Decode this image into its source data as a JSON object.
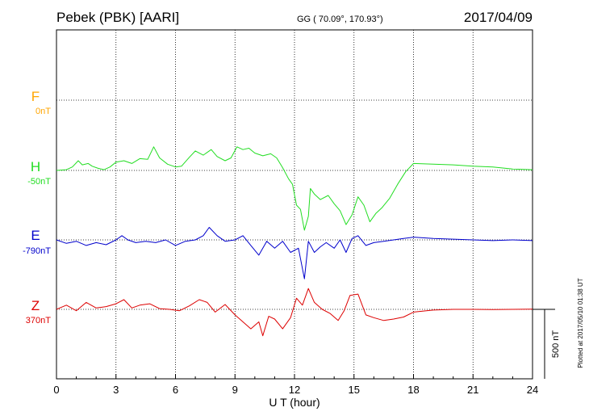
{
  "header": {
    "station": "Pebek (PBK)  [AARI]",
    "coords": "GG ( 70.09°, 170.93°)",
    "date": "2017/04/09"
  },
  "side_note": "Plotted at 2017/05/10 01:38 UT",
  "scale_label": "500 nT",
  "colors": {
    "F": "#ffa500",
    "H": "#22dd22",
    "E": "#0000cc",
    "Z": "#dd0000"
  },
  "chart_data": {
    "type": "line",
    "xlabel": "U T (hour)",
    "xlim": [
      0,
      24
    ],
    "xticks": [
      0,
      3,
      6,
      9,
      12,
      15,
      18,
      21,
      24
    ],
    "grid": true,
    "scale_bar_nT": 500,
    "series": [
      {
        "name": "F",
        "offset_label": "0nT",
        "baseline_nT": 0,
        "points": []
      },
      {
        "name": "H",
        "offset_label": "-50nT",
        "baseline_nT": -50,
        "points": [
          [
            0,
            -50
          ],
          [
            0.5,
            -45
          ],
          [
            0.8,
            -25
          ],
          [
            1.1,
            20
          ],
          [
            1.3,
            -10
          ],
          [
            1.6,
            0
          ],
          [
            1.8,
            -20
          ],
          [
            2.1,
            -35
          ],
          [
            2.4,
            -45
          ],
          [
            2.7,
            -25
          ],
          [
            3.0,
            10
          ],
          [
            3.4,
            20
          ],
          [
            3.8,
            0
          ],
          [
            4.2,
            35
          ],
          [
            4.6,
            30
          ],
          [
            4.9,
            120
          ],
          [
            5.2,
            40
          ],
          [
            5.6,
            -5
          ],
          [
            6.0,
            -25
          ],
          [
            6.3,
            -20
          ],
          [
            6.7,
            45
          ],
          [
            7.0,
            90
          ],
          [
            7.4,
            60
          ],
          [
            7.8,
            100
          ],
          [
            8.1,
            50
          ],
          [
            8.5,
            20
          ],
          [
            8.8,
            40
          ],
          [
            9.1,
            120
          ],
          [
            9.4,
            100
          ],
          [
            9.7,
            110
          ],
          [
            10.0,
            75
          ],
          [
            10.4,
            55
          ],
          [
            10.8,
            70
          ],
          [
            11.1,
            40
          ],
          [
            11.4,
            -30
          ],
          [
            11.7,
            -110
          ],
          [
            11.9,
            -150
          ],
          [
            12.1,
            -300
          ],
          [
            12.3,
            -330
          ],
          [
            12.5,
            -480
          ],
          [
            12.7,
            -380
          ],
          [
            12.8,
            -180
          ],
          [
            13.0,
            -220
          ],
          [
            13.3,
            -260
          ],
          [
            13.7,
            -230
          ],
          [
            14.0,
            -290
          ],
          [
            14.3,
            -340
          ],
          [
            14.6,
            -440
          ],
          [
            14.9,
            -370
          ],
          [
            15.2,
            -240
          ],
          [
            15.5,
            -300
          ],
          [
            15.8,
            -420
          ],
          [
            16.1,
            -360
          ],
          [
            16.4,
            -320
          ],
          [
            16.8,
            -250
          ],
          [
            17.2,
            -150
          ],
          [
            17.6,
            -60
          ],
          [
            18.0,
            0
          ],
          [
            19.0,
            -5
          ],
          [
            20.0,
            -10
          ],
          [
            21.0,
            -20
          ],
          [
            22.0,
            -25
          ],
          [
            23.0,
            -40
          ],
          [
            24.0,
            -45
          ]
        ]
      },
      {
        "name": "E",
        "offset_label": "-790nT",
        "baseline_nT": -790,
        "points": [
          [
            0,
            -790
          ],
          [
            0.5,
            -815
          ],
          [
            1.0,
            -800
          ],
          [
            1.5,
            -830
          ],
          [
            2.0,
            -810
          ],
          [
            2.5,
            -825
          ],
          [
            3.0,
            -790
          ],
          [
            3.3,
            -760
          ],
          [
            3.6,
            -790
          ],
          [
            4.0,
            -810
          ],
          [
            4.5,
            -800
          ],
          [
            5.0,
            -810
          ],
          [
            5.5,
            -790
          ],
          [
            6.0,
            -830
          ],
          [
            6.5,
            -800
          ],
          [
            7.0,
            -790
          ],
          [
            7.4,
            -760
          ],
          [
            7.7,
            -700
          ],
          [
            8.1,
            -760
          ],
          [
            8.5,
            -800
          ],
          [
            9.0,
            -790
          ],
          [
            9.4,
            -760
          ],
          [
            9.8,
            -830
          ],
          [
            10.2,
            -900
          ],
          [
            10.6,
            -800
          ],
          [
            11.0,
            -850
          ],
          [
            11.4,
            -800
          ],
          [
            11.8,
            -880
          ],
          [
            12.2,
            -850
          ],
          [
            12.5,
            -1070
          ],
          [
            12.7,
            -800
          ],
          [
            13.0,
            -880
          ],
          [
            13.3,
            -840
          ],
          [
            13.6,
            -810
          ],
          [
            14.0,
            -850
          ],
          [
            14.3,
            -790
          ],
          [
            14.6,
            -880
          ],
          [
            14.9,
            -780
          ],
          [
            15.2,
            -760
          ],
          [
            15.6,
            -830
          ],
          [
            16.0,
            -810
          ],
          [
            16.5,
            -800
          ],
          [
            17.0,
            -790
          ],
          [
            17.5,
            -780
          ],
          [
            18.0,
            -770
          ],
          [
            19.0,
            -780
          ],
          [
            20.0,
            -785
          ],
          [
            21.0,
            -790
          ],
          [
            22.0,
            -795
          ],
          [
            23.0,
            -790
          ],
          [
            24.0,
            -795
          ]
        ]
      },
      {
        "name": "Z",
        "offset_label": "370nT",
        "baseline_nT": 370,
        "points": [
          [
            0,
            370
          ],
          [
            0.5,
            400
          ],
          [
            1.0,
            360
          ],
          [
            1.5,
            420
          ],
          [
            2.0,
            380
          ],
          [
            2.5,
            390
          ],
          [
            3.0,
            410
          ],
          [
            3.4,
            440
          ],
          [
            3.8,
            380
          ],
          [
            4.2,
            400
          ],
          [
            4.7,
            410
          ],
          [
            5.2,
            375
          ],
          [
            5.7,
            370
          ],
          [
            6.2,
            360
          ],
          [
            6.7,
            395
          ],
          [
            7.2,
            440
          ],
          [
            7.6,
            420
          ],
          [
            8.0,
            350
          ],
          [
            8.5,
            405
          ],
          [
            9.0,
            330
          ],
          [
            9.4,
            280
          ],
          [
            9.8,
            230
          ],
          [
            10.2,
            280
          ],
          [
            10.4,
            180
          ],
          [
            10.7,
            320
          ],
          [
            11.0,
            300
          ],
          [
            11.4,
            230
          ],
          [
            11.8,
            310
          ],
          [
            12.1,
            450
          ],
          [
            12.4,
            400
          ],
          [
            12.7,
            520
          ],
          [
            13.0,
            420
          ],
          [
            13.4,
            370
          ],
          [
            13.8,
            340
          ],
          [
            14.2,
            290
          ],
          [
            14.5,
            360
          ],
          [
            14.8,
            470
          ],
          [
            15.2,
            480
          ],
          [
            15.6,
            330
          ],
          [
            16.0,
            310
          ],
          [
            16.5,
            290
          ],
          [
            17.0,
            300
          ],
          [
            17.5,
            315
          ],
          [
            18.0,
            350
          ],
          [
            19.0,
            365
          ],
          [
            20.0,
            370
          ],
          [
            21.0,
            370
          ],
          [
            22.0,
            368
          ],
          [
            23.0,
            370
          ],
          [
            24.0,
            372
          ]
        ]
      }
    ]
  }
}
